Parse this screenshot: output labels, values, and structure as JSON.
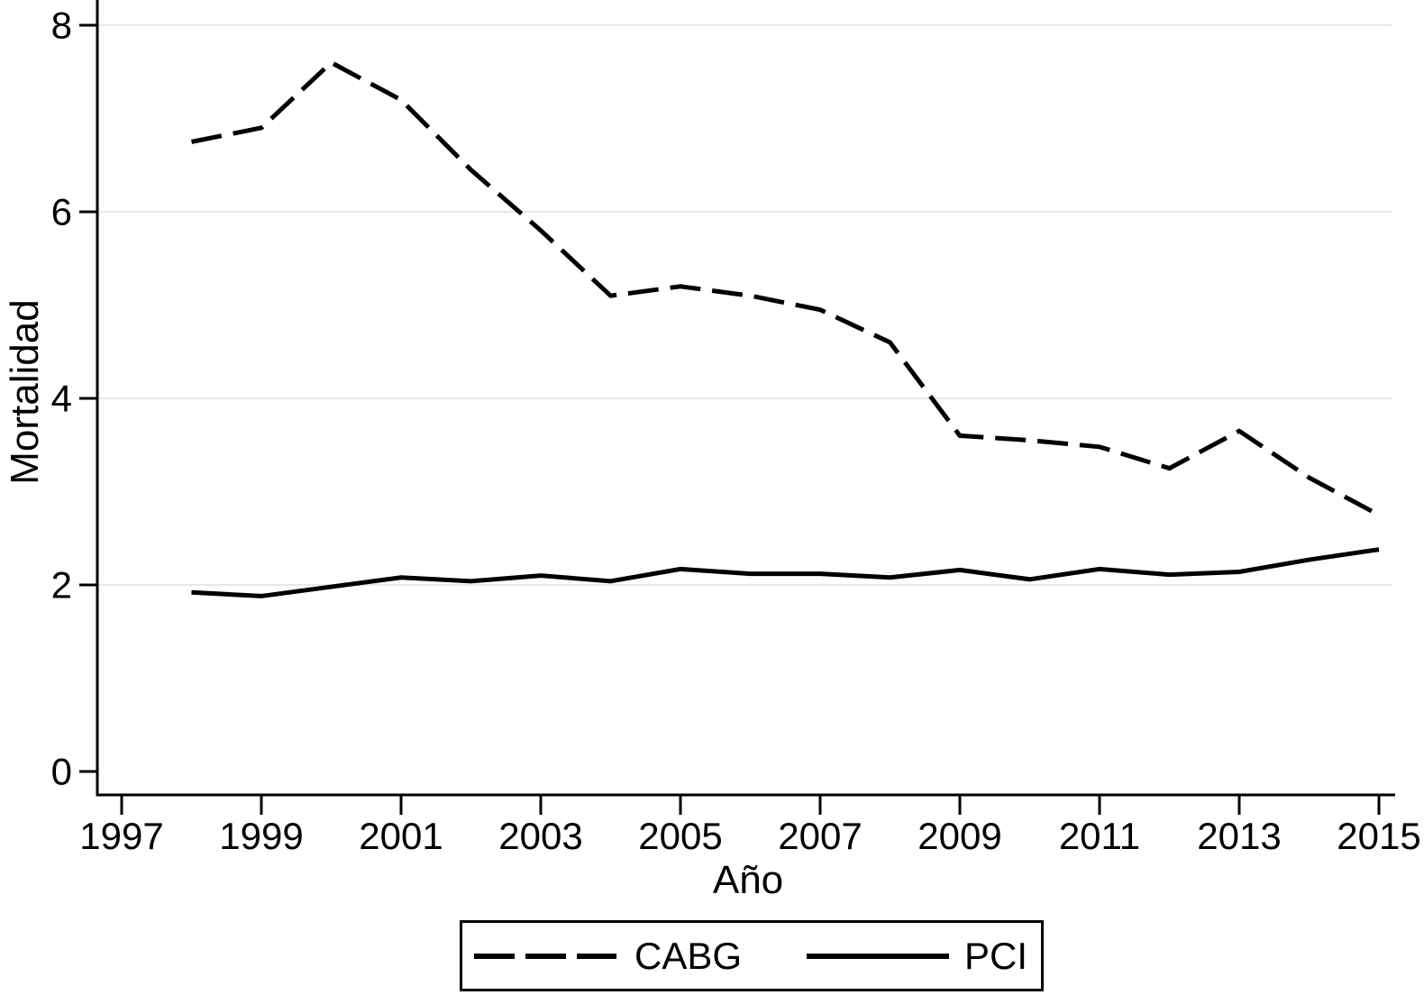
{
  "chart_data": {
    "type": "line",
    "title": "",
    "xlabel": "Año",
    "ylabel": "Mortalidad",
    "x": [
      1998,
      1999,
      2000,
      2001,
      2002,
      2003,
      2004,
      2005,
      2006,
      2007,
      2008,
      2009,
      2010,
      2011,
      2012,
      2013,
      2014,
      2015
    ],
    "series": [
      {
        "name": "CABG",
        "style": "dashed",
        "values": [
          6.75,
          6.9,
          7.6,
          7.2,
          6.45,
          5.8,
          5.1,
          5.2,
          5.1,
          4.95,
          4.6,
          3.6,
          3.55,
          3.48,
          3.25,
          3.65,
          3.15,
          2.75
        ]
      },
      {
        "name": "PCI",
        "style": "solid",
        "values": [
          1.92,
          1.88,
          1.98,
          2.08,
          2.04,
          2.1,
          2.04,
          2.17,
          2.12,
          2.12,
          2.08,
          2.16,
          2.06,
          2.17,
          2.11,
          2.14,
          2.27,
          2.38
        ]
      }
    ],
    "x_ticks": [
      1997,
      1999,
      2001,
      2003,
      2005,
      2007,
      2009,
      2011,
      2013,
      2015
    ],
    "y_ticks": [
      0,
      2,
      4,
      6,
      8
    ],
    "xlim": [
      1997,
      2015.6
    ],
    "ylim": [
      0,
      8.5
    ],
    "grid": "horizontal-only",
    "legend_position": "bottom-center"
  },
  "colors": {
    "line": "#000000",
    "grid": "#e4eaec",
    "background": "#ffffff",
    "text": "#000000"
  }
}
